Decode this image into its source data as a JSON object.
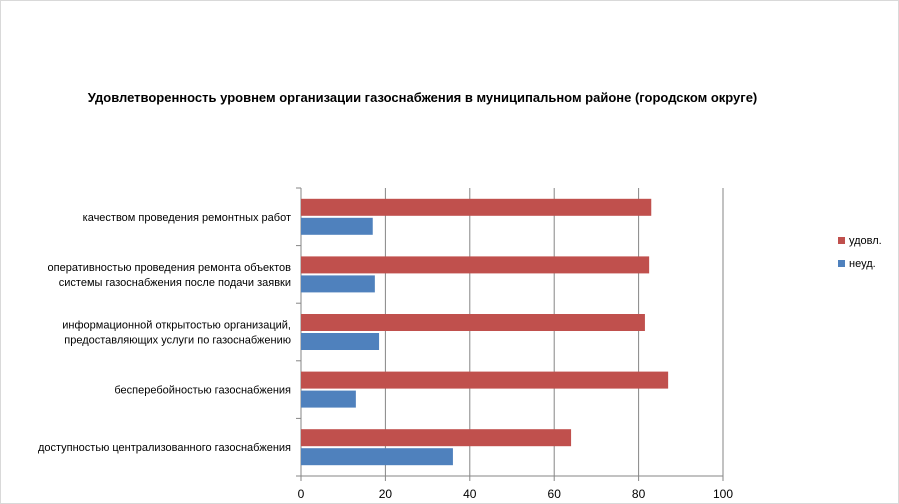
{
  "chart_data": {
    "type": "bar",
    "orientation": "horizontal",
    "title": "Удовлетворенность уровнем организации газоснабжения в муниципальном районе (городском округе)",
    "categories": [
      [
        "качеством проведения ремонтных работ"
      ],
      [
        "оперативностью проведения ремонта объектов",
        "системы газоснабжения после подачи заявки"
      ],
      [
        "информационной открытостью организаций,",
        "предоставляющих услуги по газоснабжению"
      ],
      [
        "бесперебойностью  газоснабжения"
      ],
      [
        "доступностью централизованного газоснабжения"
      ]
    ],
    "series": [
      {
        "name": "удовл.",
        "color": "#c0504d",
        "values": [
          83,
          82.5,
          81.5,
          87,
          64
        ]
      },
      {
        "name": "неуд.",
        "color": "#4f81bd",
        "values": [
          17,
          17.5,
          18.5,
          13,
          36
        ]
      }
    ],
    "xlim": [
      0,
      100
    ],
    "xticks": [
      "0",
      "20",
      "40",
      "60",
      "80",
      "100"
    ],
    "grid": "vertical-major",
    "legend_position": "right"
  }
}
